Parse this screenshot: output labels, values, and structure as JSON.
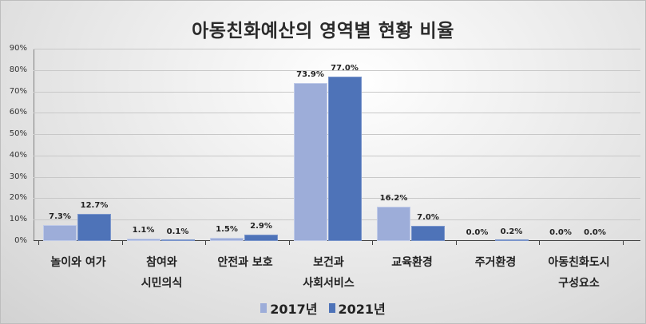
{
  "chart_data": {
    "type": "bar",
    "title": "아동친화예산의 영역별 현황 비율",
    "xlabel": "",
    "ylabel": "",
    "ylim": [
      0,
      90
    ],
    "yticks": [
      "0%",
      "10%",
      "20%",
      "30%",
      "40%",
      "50%",
      "60%",
      "70%",
      "80%",
      "90%"
    ],
    "grid": true,
    "legend_position": "bottom",
    "categories": [
      "놀이와 여가",
      "참여와 시민의식",
      "안전과 보호",
      "보건과 사회서비스",
      "교육환경",
      "주거환경",
      "아동친화도시 구성요소"
    ],
    "category_lines": [
      [
        "놀이와 여가"
      ],
      [
        "참여와",
        "시민의식"
      ],
      [
        "안전과 보호"
      ],
      [
        "보건과",
        "사회서비스"
      ],
      [
        "교육환경"
      ],
      [
        "주거환경"
      ],
      [
        "아동친화도시",
        "구성요소"
      ]
    ],
    "series": [
      {
        "name": "2017년",
        "color": "#9dadd9",
        "values": [
          7.3,
          1.1,
          1.5,
          73.9,
          16.2,
          0.0,
          0.0
        ],
        "labels": [
          "7.3%",
          "1.1%",
          "1.5%",
          "73.9%",
          "16.2%",
          "0.0%",
          "0.0%"
        ]
      },
      {
        "name": "2021년",
        "color": "#4e73b8",
        "values": [
          12.7,
          0.1,
          2.9,
          77.0,
          7.0,
          0.2,
          0.0
        ],
        "labels": [
          "12.7%",
          "0.1%",
          "2.9%",
          "77.0%",
          "7.0%",
          "0.2%",
          "0.0%"
        ]
      }
    ]
  }
}
